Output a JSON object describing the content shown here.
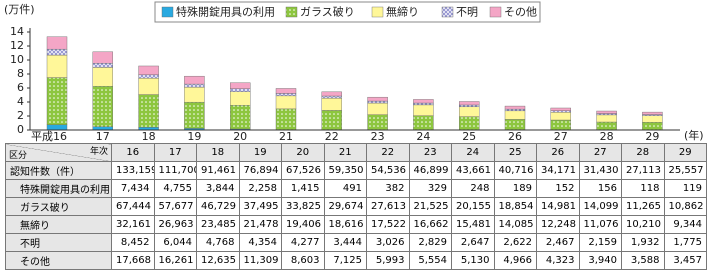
{
  "chart_data": {
    "type": "stacked-bar",
    "y_label": "(万件)",
    "x_label": "(年)",
    "categories": [
      "平成16",
      "17",
      "18",
      "19",
      "20",
      "21",
      "22",
      "23",
      "24",
      "25",
      "26",
      "27",
      "28",
      "29"
    ],
    "ylim": [
      0,
      14
    ],
    "yticks": [
      0,
      2,
      4,
      6,
      8,
      10,
      12,
      14
    ],
    "legend": "top",
    "series": [
      {
        "name": "特殊開錠用具の利用",
        "color": "#29a9e0",
        "pattern": "solid",
        "values": [
          0.7434,
          0.4755,
          0.3844,
          0.2258,
          0.1415,
          0.0491,
          0.0382,
          0.0329,
          0.0248,
          0.0189,
          0.0152,
          0.0156,
          0.0118,
          0.0119
        ]
      },
      {
        "name": "ガラス破り",
        "color": "#8dc63f",
        "pattern": "dots",
        "values": [
          6.7444,
          5.7677,
          4.6729,
          3.7495,
          3.3825,
          2.9674,
          2.7613,
          2.1525,
          2.0155,
          1.8854,
          1.4981,
          1.4099,
          1.1265,
          1.0862
        ]
      },
      {
        "name": "無締り",
        "color": "#fff799",
        "pattern": "solid",
        "values": [
          3.2161,
          2.6963,
          2.3485,
          2.1478,
          1.9406,
          1.8616,
          1.7522,
          1.6662,
          1.5481,
          1.4085,
          1.2248,
          1.1076,
          1.021,
          0.9344
        ]
      },
      {
        "name": "不明",
        "color": "#8c8ccc",
        "pattern": "cross",
        "values": [
          0.8452,
          0.6044,
          0.4768,
          0.4354,
          0.4277,
          0.3444,
          0.3026,
          0.2829,
          0.2647,
          0.2622,
          0.2467,
          0.2159,
          0.1932,
          0.1775
        ]
      },
      {
        "name": "その他",
        "color": "#f4a6c6",
        "pattern": "solid",
        "values": [
          1.7668,
          1.6261,
          1.2635,
          1.1309,
          0.8603,
          0.7125,
          0.5993,
          0.5554,
          0.513,
          0.4966,
          0.4323,
          0.394,
          0.3588,
          0.3457
        ]
      }
    ]
  },
  "table": {
    "corner_top": "年次",
    "corner_bottom": "区分",
    "header": [
      "16",
      "17",
      "18",
      "19",
      "20",
      "21",
      "22",
      "23",
      "24",
      "25",
      "26",
      "27",
      "28",
      "29"
    ],
    "rows": [
      {
        "label": "認知件数（件）",
        "cells": [
          "133,159",
          "111,700",
          "91,461",
          "76,894",
          "67,526",
          "59,350",
          "54,536",
          "46,899",
          "43,661",
          "40,716",
          "34,171",
          "31,430",
          "27,113",
          "25,557"
        ]
      },
      {
        "label": "特殊開錠用具の利用",
        "cells": [
          "7,434",
          "4,755",
          "3,844",
          "2,258",
          "1,415",
          "491",
          "382",
          "329",
          "248",
          "189",
          "152",
          "156",
          "118",
          "119"
        ]
      },
      {
        "label": "ガラス破り",
        "cells": [
          "67,444",
          "57,677",
          "46,729",
          "37,495",
          "33,825",
          "29,674",
          "27,613",
          "21,525",
          "20,155",
          "18,854",
          "14,981",
          "14,099",
          "11,265",
          "10,862"
        ]
      },
      {
        "label": "無締り",
        "cells": [
          "32,161",
          "26,963",
          "23,485",
          "21,478",
          "19,406",
          "18,616",
          "17,522",
          "16,662",
          "15,481",
          "14,085",
          "12,248",
          "11,076",
          "10,210",
          "9,344"
        ]
      },
      {
        "label": "不明",
        "cells": [
          "8,452",
          "6,044",
          "4,768",
          "4,354",
          "4,277",
          "3,444",
          "3,026",
          "2,829",
          "2,647",
          "2,622",
          "2,467",
          "2,159",
          "1,932",
          "1,775"
        ]
      },
      {
        "label": "その他",
        "cells": [
          "17,668",
          "16,261",
          "12,635",
          "11,309",
          "8,603",
          "7,125",
          "5,993",
          "5,554",
          "5,130",
          "4,966",
          "4,323",
          "3,940",
          "3,588",
          "3,457"
        ]
      }
    ]
  }
}
